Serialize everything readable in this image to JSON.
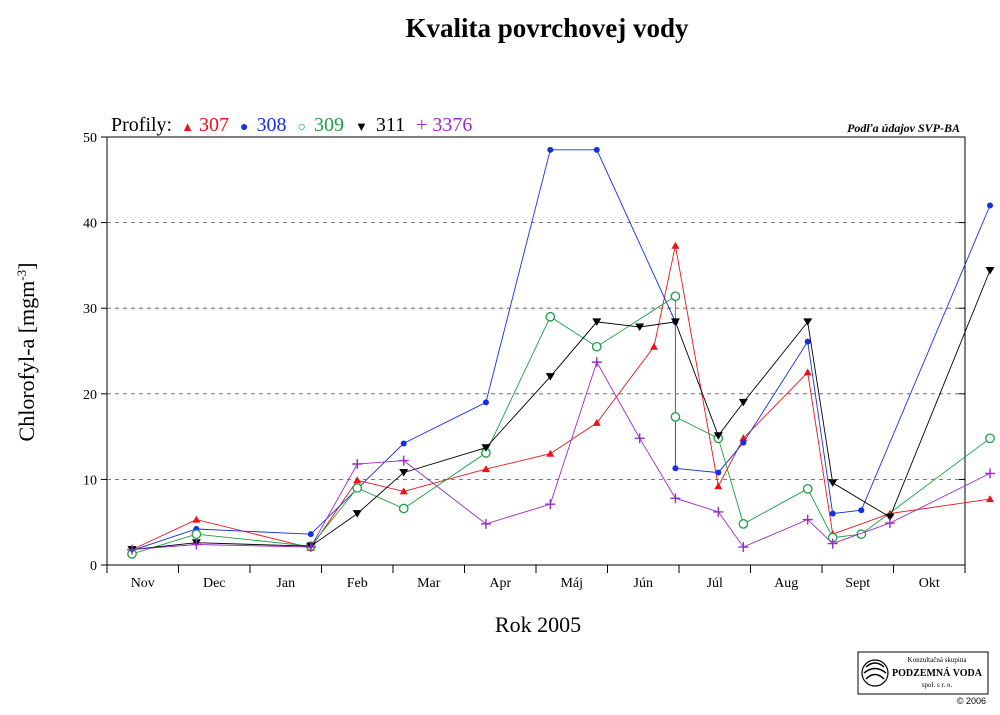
{
  "chart_data": {
    "type": "line",
    "title": "Kvalita povrchovej vody",
    "xlabel": "Rok  2005",
    "ylabel": "Chlorofyl-a [mgm",
    "ylabel_sup": "-3",
    "ylabel_end": "]",
    "ylim": [
      0,
      50
    ],
    "yticks": [
      0,
      10,
      20,
      30,
      40,
      50
    ],
    "grid": "horizontal dashed",
    "legend_placement": "top-left",
    "categories": [
      "Nov",
      "Dec",
      "Jan",
      "Feb",
      "Mar",
      "Apr",
      "Máj",
      "Jún",
      "Júl",
      "Aug",
      "Sept",
      "Okt"
    ],
    "series": [
      {
        "name": "307",
        "color": "#e8151b",
        "marker": "triangle-up",
        "points": [
          [
            0.35,
            1.8
          ],
          [
            1.25,
            5.3
          ],
          [
            2.85,
            2.0
          ],
          [
            3.5,
            9.9
          ],
          [
            4.15,
            8.6
          ],
          [
            5.3,
            11.2
          ],
          [
            6.2,
            13.0
          ],
          [
            6.85,
            16.6
          ],
          [
            7.65,
            25.5
          ],
          [
            7.95,
            37.3
          ],
          [
            8.55,
            9.2
          ],
          [
            8.9,
            14.8
          ],
          [
            9.8,
            22.5
          ],
          [
            10.15,
            3.6
          ],
          [
            10.95,
            6.0
          ],
          [
            12.35,
            7.7
          ]
        ]
      },
      {
        "name": "308",
        "color": "#1530e0",
        "marker": "circle-filled",
        "points": [
          [
            0.35,
            1.7
          ],
          [
            1.25,
            4.2
          ],
          [
            2.85,
            3.6
          ],
          [
            4.15,
            14.2
          ],
          [
            5.3,
            19.0
          ],
          [
            6.2,
            48.5
          ],
          [
            6.85,
            48.5
          ],
          [
            7.95,
            28.4
          ],
          [
            7.95,
            11.3
          ],
          [
            8.55,
            10.8
          ],
          [
            8.9,
            14.3
          ],
          [
            9.8,
            26.1
          ],
          [
            10.15,
            6.0
          ],
          [
            10.55,
            6.4
          ],
          [
            12.35,
            42.0
          ]
        ]
      },
      {
        "name": "309",
        "color": "#1aa040",
        "marker": "circle-open",
        "points": [
          [
            0.35,
            1.3
          ],
          [
            1.25,
            3.6
          ],
          [
            2.85,
            2.2
          ],
          [
            3.5,
            9.0
          ],
          [
            4.15,
            6.6
          ],
          [
            5.3,
            13.1
          ],
          [
            6.2,
            29.0
          ],
          [
            6.85,
            25.5
          ],
          [
            7.95,
            31.4
          ],
          [
            7.95,
            17.3
          ],
          [
            8.55,
            14.8
          ],
          [
            8.9,
            4.8
          ],
          [
            9.8,
            8.9
          ],
          [
            10.15,
            3.2
          ],
          [
            10.55,
            3.6
          ],
          [
            12.35,
            14.8
          ]
        ]
      },
      {
        "name": "311",
        "color": "#000000",
        "marker": "triangle-down",
        "points": [
          [
            0.35,
            1.8
          ],
          [
            1.25,
            2.6
          ],
          [
            2.85,
            2.2
          ],
          [
            3.5,
            6.0
          ],
          [
            4.15,
            10.8
          ],
          [
            5.3,
            13.7
          ],
          [
            6.2,
            22.0
          ],
          [
            6.85,
            28.4
          ],
          [
            7.45,
            27.8
          ],
          [
            7.95,
            28.4
          ],
          [
            8.55,
            15.1
          ],
          [
            8.9,
            19.0
          ],
          [
            9.8,
            28.4
          ],
          [
            10.15,
            9.6
          ],
          [
            10.95,
            5.6
          ],
          [
            12.35,
            34.4
          ]
        ]
      },
      {
        "name": "3376",
        "color": "#9a2cc4",
        "marker": "plus",
        "points": [
          [
            0.35,
            1.8
          ],
          [
            1.25,
            2.4
          ],
          [
            2.85,
            2.1
          ],
          [
            3.5,
            11.8
          ],
          [
            4.15,
            12.2
          ],
          [
            5.3,
            4.8
          ],
          [
            6.2,
            7.1
          ],
          [
            6.85,
            23.7
          ],
          [
            7.45,
            14.8
          ],
          [
            7.95,
            7.8
          ],
          [
            8.55,
            6.2
          ],
          [
            8.9,
            2.1
          ],
          [
            9.8,
            5.3
          ],
          [
            10.15,
            2.5
          ],
          [
            10.95,
            4.9
          ],
          [
            12.35,
            10.7
          ]
        ]
      }
    ]
  },
  "legend": {
    "label": "Profily:",
    "entries": [
      {
        "symbol": "▲",
        "text": "307",
        "color": "#e8151b"
      },
      {
        "symbol": "●",
        "text": "308",
        "color": "#1530e0"
      },
      {
        "symbol": "○",
        "text": "309",
        "color": "#1aa040"
      },
      {
        "symbol": "▼",
        "text": "311",
        "color": "#000000"
      },
      {
        "symbol": "+",
        "text": "3376",
        "color": "#9a2cc4"
      }
    ]
  },
  "source_note": "Podľa údajov SVP-BA",
  "logo": {
    "line1": "Konzultačná skupina",
    "line2": "PODZEMNÁ VODA",
    "line3": "spol. s r. o.",
    "copyright": "© 2006"
  }
}
